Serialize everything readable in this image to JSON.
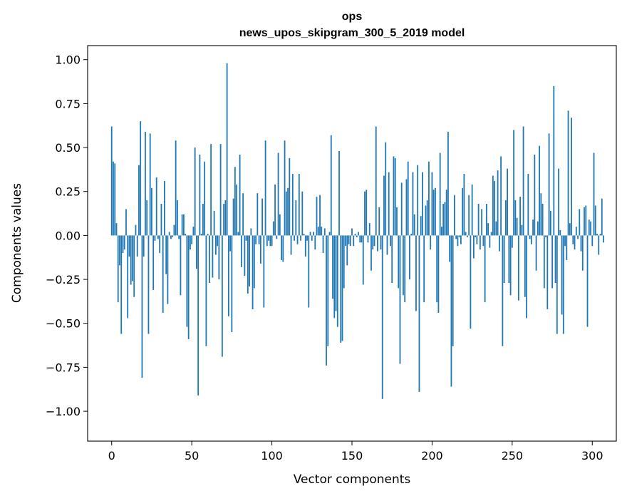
{
  "chart_data": {
    "type": "bar",
    "title": "ops",
    "subtitle": "news_upos_skipgram_300_5_2019 model",
    "xlabel": "Vector components",
    "ylabel": "Components values",
    "xlim": [
      -15,
      315
    ],
    "ylim": [
      -1.17,
      1.08
    ],
    "xticks": [
      0,
      50,
      100,
      150,
      200,
      250,
      300
    ],
    "yticks": [
      -1.0,
      -0.75,
      -0.5,
      -0.25,
      0.0,
      0.25,
      0.5,
      0.75,
      1.0
    ],
    "ytick_labels": [
      "−1.00",
      "−0.75",
      "−0.50",
      "−0.25",
      "0.00",
      "0.25",
      "0.50",
      "0.75",
      "1.00"
    ],
    "bar_color": "#1f77b4",
    "grid": false,
    "values": [
      0.62,
      0.42,
      0.41,
      0.07,
      -0.38,
      -0.17,
      -0.56,
      -0.1,
      -0.08,
      0.15,
      -0.47,
      -0.12,
      -0.28,
      -0.26,
      -0.35,
      0.06,
      -0.12,
      0.4,
      0.65,
      -0.81,
      -0.12,
      0.59,
      0.2,
      -0.56,
      0.58,
      0.27,
      -0.31,
      -0.03,
      0.33,
      -0.02,
      -0.1,
      0.18,
      -0.44,
      0.31,
      -0.22,
      -0.39,
      0.02,
      -0.02,
      -0.01,
      0.06,
      0.54,
      0.2,
      -0.02,
      -0.34,
      0.12,
      0.12,
      0.01,
      -0.52,
      -0.59,
      -0.08,
      -0.05,
      0.05,
      0.5,
      -0.19,
      -0.91,
      0.46,
      0.01,
      0.18,
      0.42,
      -0.63,
      0.01,
      -0.27,
      0.52,
      -0.24,
      0.14,
      -0.11,
      -0.06,
      -0.25,
      0.52,
      -0.69,
      0.18,
      0.2,
      0.98,
      -0.46,
      -0.09,
      -0.55,
      0.21,
      0.39,
      0.29,
      0.02,
      0.46,
      -0.18,
      0.24,
      -0.23,
      -0.03,
      -0.33,
      -0.29,
      0.04,
      -0.42,
      -0.3,
      -0.05,
      0.24,
      -0.05,
      -0.16,
      0.21,
      -0.41,
      0.54,
      -0.06,
      -0.03,
      -0.06,
      -0.06,
      0.08,
      0.29,
      -0.02,
      0.47,
      0.12,
      -0.14,
      -0.15,
      0.54,
      0.25,
      0.27,
      0.44,
      -0.11,
      0.35,
      -0.03,
      0.2,
      -0.05,
      0.35,
      -0.03,
      0.25,
      0.01,
      -0.12,
      -0.03,
      -0.41,
      0.02,
      -0.03,
      0.02,
      -0.08,
      0.22,
      0.05,
      0.23,
      0.05,
      -0.1,
      0.04,
      -0.74,
      -0.63,
      0.02,
      0.57,
      -0.36,
      -0.47,
      -0.43,
      -0.52,
      0.48,
      -0.61,
      -0.6,
      -0.3,
      -0.06,
      -0.17,
      -0.05,
      -0.06,
      0.04,
      -0.06,
      0.01,
      -0.01,
      0.02,
      -0.04,
      -0.04,
      -0.28,
      0.25,
      0.26,
      -0.04,
      0.07,
      -0.2,
      -0.08,
      -0.06,
      0.62,
      -0.09,
      0.16,
      -0.08,
      -0.93,
      0.34,
      0.53,
      -0.11,
      0.36,
      -0.06,
      -0.27,
      0.45,
      0.44,
      0.16,
      -0.3,
      -0.73,
      0.3,
      -0.34,
      -0.38,
      0.32,
      0.42,
      -0.25,
      0.01,
      0.36,
      0.12,
      -0.43,
      0.4,
      -0.89,
      0.11,
      0.36,
      -0.38,
      0.17,
      0.2,
      0.42,
      -0.08,
      0.36,
      0.26,
      0.27,
      -0.38,
      -0.44,
      0.47,
      0.05,
      0.18,
      0.19,
      0.26,
      0.59,
      -0.15,
      -0.86,
      -0.63,
      0.23,
      -0.02,
      -0.06,
      -0.01,
      -0.05,
      0.27,
      0.35,
      0.02,
      -0.01,
      0.23,
      -0.53,
      0.29,
      -0.13,
      -0.01,
      -0.05,
      0.18,
      -0.08,
      0.15,
      -0.06,
      -0.38,
      0.18,
      0.07,
      -0.07,
      0.02,
      0.34,
      0.31,
      0.08,
      0.37,
      -0.09,
      0.45,
      -0.63,
      -0.27,
      0.2,
      0.38,
      -0.27,
      -0.34,
      -0.07,
      0.6,
      0.2,
      0.1,
      -0.37,
      0.22,
      0.06,
      0.62,
      -0.35,
      -0.47,
      0.35,
      -0.02,
      -0.05,
      0.09,
      0.46,
      -0.2,
      0.08,
      0.51,
      0.24,
      0.18,
      -0.3,
      -0.01,
      -0.42,
      0.58,
      0.14,
      -0.3,
      0.85,
      -0.27,
      -0.56,
      0.38,
      0.03,
      -0.45,
      -0.56,
      -0.06,
      -0.14,
      0.71,
      0.07,
      0.67,
      -0.05,
      -0.08,
      0.05,
      -0.02,
      0.15,
      -0.09,
      -0.2,
      0.16,
      0.17,
      -0.52,
      0.09,
      0.08,
      -0.06,
      0.47,
      0.17,
      0.01,
      -0.11,
      0.01,
      0.21,
      -0.04
    ]
  }
}
